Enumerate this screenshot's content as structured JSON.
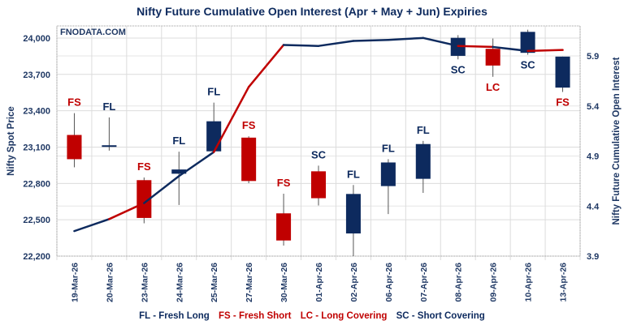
{
  "chart_data": {
    "type": "candlestick+line",
    "title": "Nifty Future Cumulative Open Interest (Apr + May + Jun) Expiries",
    "watermark": "FNODATA.COM",
    "ylabel_left": "Nifty Spot Price",
    "ylabel_right": "Nifty Future Cumulative Open Interest",
    "ylim_left": [
      22200,
      24100
    ],
    "ylim_right": [
      3.9,
      6.2
    ],
    "yticks_left": [
      "22,200",
      "22,500",
      "22,800",
      "23,100",
      "23,400",
      "23,700",
      "24,000"
    ],
    "yticks_left_values": [
      22200,
      22500,
      22800,
      23100,
      23400,
      23700,
      24000
    ],
    "yticks_right": [
      "3.9",
      "4.4",
      "4.9",
      "5.4",
      "5.9"
    ],
    "yticks_right_values": [
      3.9,
      4.4,
      4.9,
      5.4,
      5.9
    ],
    "grid": true,
    "categories": [
      "19-Mar-26",
      "20-Mar-26",
      "23-Mar-26",
      "24-Mar-26",
      "25-Mar-26",
      "27-Mar-26",
      "30-Mar-26",
      "01-Apr-26",
      "02-Apr-26",
      "06-Apr-26",
      "07-Apr-26",
      "08-Apr-26",
      "09-Apr-26",
      "10-Apr-26",
      "13-Apr-26"
    ],
    "candles": [
      {
        "open": 23200,
        "high": 23380,
        "low": 22933,
        "close": 23000,
        "color": "#c00000",
        "label": "FS",
        "label_pos": "above"
      },
      {
        "open": 23112,
        "high": 23345,
        "low": 23071,
        "close": 23115,
        "color": "#0d2a5e",
        "label": "FL",
        "label_pos": "above"
      },
      {
        "open": 22827,
        "high": 22849,
        "low": 22471,
        "close": 22515,
        "color": "#c00000",
        "label": "FS",
        "label_pos": "above"
      },
      {
        "open": 22880,
        "high": 23062,
        "low": 22622,
        "close": 22915,
        "color": "#0d2a5e",
        "label": "FL",
        "label_pos": "above"
      },
      {
        "open": 23065,
        "high": 23467,
        "low": 23064,
        "close": 23313,
        "color": "#0d2a5e",
        "label": "FL",
        "label_pos": "above"
      },
      {
        "open": 23178,
        "high": 23189,
        "low": 22802,
        "close": 22820,
        "color": "#c00000",
        "label": "FS",
        "label_pos": "above"
      },
      {
        "open": 22553,
        "high": 22715,
        "low": 22287,
        "close": 22329,
        "color": "#c00000",
        "label": "FS",
        "label_pos": "above"
      },
      {
        "open": 22900,
        "high": 22947,
        "low": 22618,
        "close": 22678,
        "color": "#c00000",
        "label": "SC",
        "label_pos": "above"
      },
      {
        "open": 22387,
        "high": 22787,
        "low": 22200,
        "close": 22713,
        "color": "#0d2a5e",
        "label": "FL",
        "label_pos": "above"
      },
      {
        "open": 22778,
        "high": 23000,
        "low": 22547,
        "close": 22973,
        "color": "#0d2a5e",
        "label": "FL",
        "label_pos": "above"
      },
      {
        "open": 22838,
        "high": 23151,
        "low": 22722,
        "close": 23125,
        "color": "#0d2a5e",
        "label": "FL",
        "label_pos": "above"
      },
      {
        "open": 23853,
        "high": 24024,
        "low": 23824,
        "close": 24002,
        "color": "#0d2a5e",
        "label": "SC",
        "label_pos": "below"
      },
      {
        "open": 23911,
        "high": 23996,
        "low": 23680,
        "close": 23773,
        "color": "#c00000",
        "label": "LC",
        "label_pos": "below"
      },
      {
        "open": 23878,
        "high": 24069,
        "low": 23862,
        "close": 24051,
        "color": "#0d2a5e",
        "label": "SC",
        "label_pos": "below"
      },
      {
        "open": 23591,
        "high": 23847,
        "low": 23555,
        "close": 23847,
        "color": "#0d2a5e",
        "label": "FS",
        "label_pos": "below"
      }
    ],
    "label_colors": {
      "FL": "#0d2a5e",
      "FS": "#c00000",
      "LC": "#c00000",
      "SC": "#0d2a5e"
    },
    "open_interest": [
      4.15,
      4.27,
      4.43,
      4.7,
      4.94,
      5.59,
      6.01,
      6.0,
      6.05,
      6.06,
      6.08,
      6.0,
      5.99,
      5.95,
      5.96
    ],
    "oi_segment_colors": [
      "#0d2a5e",
      "#c00000",
      "#0d2a5e",
      "#0d2a5e",
      "#c00000",
      "#c00000",
      "#0d2a5e",
      "#0d2a5e",
      "#0d2a5e",
      "#0d2a5e",
      "#0d2a5e",
      "#c00000",
      "#0d2a5e",
      "#c00000"
    ]
  },
  "legend": [
    {
      "text": "FL - Fresh Long",
      "color": "#0d2a5e"
    },
    {
      "text": "FS - Fresh Short",
      "color": "#c00000"
    },
    {
      "text": "LC - Long Covering",
      "color": "#c00000"
    },
    {
      "text": "SC - Short Covering",
      "color": "#0d2a5e"
    }
  ]
}
